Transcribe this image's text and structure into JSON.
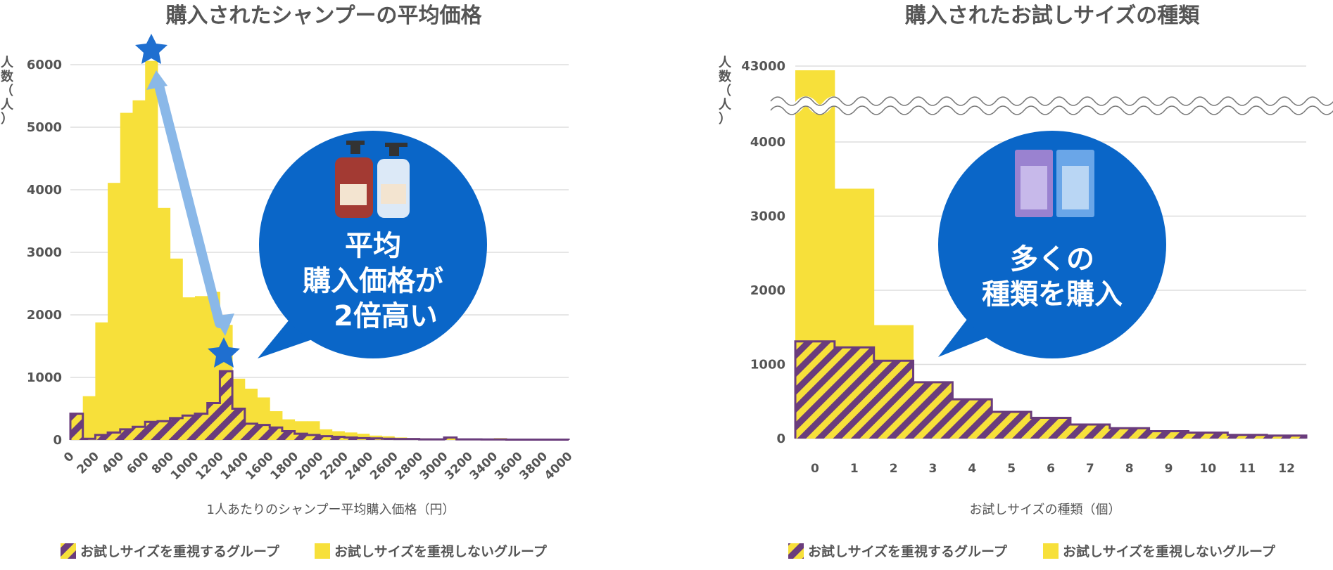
{
  "colors": {
    "yellow": "#f7e03a",
    "purple": "#6a3c7c",
    "grid": "#dddddd",
    "bubble": "#0a66c8",
    "arrow": "#8ab8e8",
    "star": "#1f6fd0"
  },
  "chart_data": [
    {
      "type": "bar",
      "title": "購入されたシャンプーの平均価格",
      "xlabel": "1人あたりのシャンプー平均購入価格（円）",
      "ylabel": "人数（人）",
      "ylabel_chars": [
        "人",
        "数",
        "（",
        "人",
        "）"
      ],
      "ylim": [
        0,
        6000
      ],
      "yticks": [
        "0",
        "1000",
        "2000",
        "3000",
        "4000",
        "5000",
        "6000"
      ],
      "xticks": [
        "0",
        "200",
        "400",
        "600",
        "800",
        "1000",
        "1200",
        "1400",
        "1600",
        "1800",
        "2000",
        "2200",
        "2400",
        "2600",
        "2800",
        "3000",
        "3200",
        "3400",
        "3600",
        "3800",
        "4000"
      ],
      "bin_width": 100,
      "series": [
        {
          "name": "お試しサイズを重視しないグループ",
          "values": [
            380,
            700,
            1880,
            4110,
            5230,
            5430,
            6060,
            3710,
            2900,
            2280,
            2300,
            2370,
            1840,
            980,
            820,
            680,
            460,
            330,
            300,
            300,
            170,
            140,
            120,
            100,
            70,
            60,
            40,
            30,
            25,
            20,
            20,
            15,
            15,
            10,
            30,
            10,
            20,
            10,
            10,
            10
          ]
        },
        {
          "name": "お試しサイズを重視するグループ",
          "values": [
            420,
            20,
            80,
            120,
            170,
            210,
            290,
            300,
            350,
            390,
            420,
            590,
            1100,
            500,
            260,
            240,
            200,
            140,
            100,
            80,
            60,
            50,
            40,
            30,
            25,
            20,
            15,
            15,
            10,
            10,
            40,
            10,
            10,
            8,
            8,
            6,
            6,
            5,
            5,
            5
          ]
        }
      ],
      "annotation": [
        "平均",
        "購入価格が",
        "2倍高い"
      ]
    },
    {
      "type": "bar",
      "title": "購入されたお試しサイズの種類",
      "xlabel": "お試しサイズの種類（個）",
      "ylabel": "人数（人）",
      "ylabel_chars": [
        "人",
        "数",
        "（",
        "人",
        "）"
      ],
      "axis_break": true,
      "top_tick": "43000",
      "yticks": [
        "0",
        "1000",
        "2000",
        "3000",
        "4000"
      ],
      "categories": [
        "0",
        "1",
        "2",
        "3",
        "4",
        "5",
        "6",
        "7",
        "8",
        "9",
        "10",
        "11",
        "12"
      ],
      "series": [
        {
          "name": "お試しサイズを重視しないグループ",
          "values": [
            43000,
            3370,
            1530,
            740,
            510,
            340,
            220,
            150,
            110,
            80,
            60,
            40,
            30
          ]
        },
        {
          "name": "お試しサイズを重視するグループ",
          "values": [
            1310,
            1230,
            1050,
            760,
            530,
            360,
            280,
            190,
            140,
            100,
            80,
            50,
            40
          ]
        }
      ],
      "annotation": [
        "多くの",
        "種類を購入"
      ]
    }
  ],
  "legend": {
    "stripe_label": "お試しサイズを重視するグループ",
    "solid_label": "お試しサイズを重視しないグループ"
  }
}
